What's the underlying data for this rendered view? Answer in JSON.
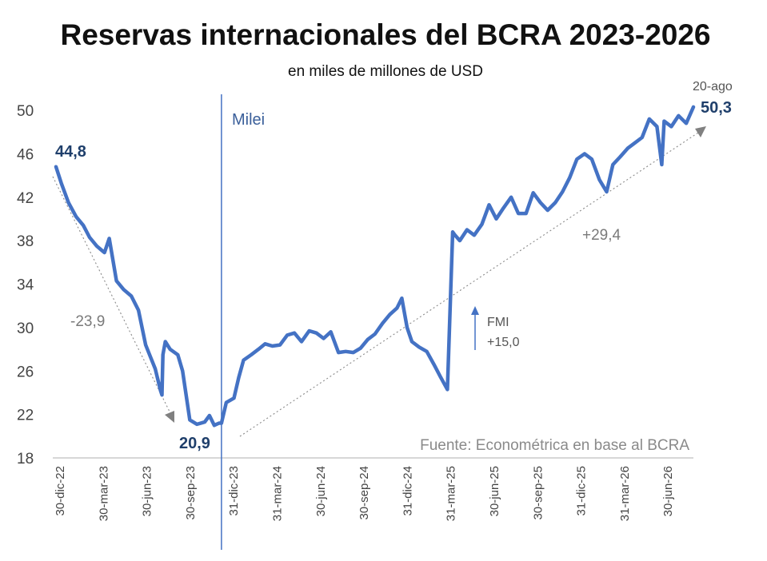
{
  "chart_data": {
    "type": "line",
    "title": "Reservas internacionales del BCRA 2023-2026",
    "subtitle": "en miles de millones de USD",
    "source": "Fuente: Econométrica en base al BCRA",
    "ylim": [
      18,
      52
    ],
    "yticks": [
      "50",
      "46",
      "42",
      "38",
      "34",
      "30",
      "26",
      "22",
      "18"
    ],
    "xtick_labels": [
      "30-dic-22",
      "30-mar-23",
      "30-jun-23",
      "30-sep-23",
      "31-dic-23",
      "31-mar-24",
      "30-jun-24",
      "30-sep-24",
      "31-dic-24",
      "31-mar-25",
      "30-jun-25",
      "30-sep-25",
      "31-dic-25",
      "31-mar-26",
      "30-jun-26"
    ],
    "grid": false,
    "series_color": "#4472c4",
    "x": [
      "2022-12-30",
      "2023-01-10",
      "2023-01-25",
      "2023-02-10",
      "2023-02-25",
      "2023-03-10",
      "2023-03-25",
      "2023-04-10",
      "2023-04-20",
      "2023-05-05",
      "2023-05-20",
      "2023-06-05",
      "2023-06-20",
      "2023-07-05",
      "2023-07-15",
      "2023-07-25",
      "2023-08-05",
      "2023-08-08",
      "2023-08-10",
      "2023-08-15",
      "2023-08-25",
      "2023-09-10",
      "2023-09-20",
      "2023-10-05",
      "2023-10-20",
      "2023-11-05",
      "2023-11-15",
      "2023-11-25",
      "2023-12-05",
      "2023-12-10",
      "2023-12-20",
      "2024-01-05",
      "2024-01-15",
      "2024-01-25",
      "2024-02-10",
      "2024-02-25",
      "2024-03-10",
      "2024-03-25",
      "2024-04-10",
      "2024-04-25",
      "2024-05-10",
      "2024-05-25",
      "2024-06-10",
      "2024-06-25",
      "2024-07-10",
      "2024-07-25",
      "2024-08-10",
      "2024-08-25",
      "2024-09-10",
      "2024-09-25",
      "2024-10-10",
      "2024-10-25",
      "2024-11-10",
      "2024-11-25",
      "2024-12-10",
      "2024-12-20",
      "2024-12-31",
      "2025-01-10",
      "2025-01-25",
      "2025-02-10",
      "2025-02-25",
      "2025-03-10",
      "2025-03-25",
      "2025-04-05",
      "2025-04-10",
      "2025-04-20",
      "2025-05-05",
      "2025-05-20",
      "2025-06-05",
      "2025-06-20",
      "2025-07-05",
      "2025-07-20",
      "2025-08-05",
      "2025-08-20",
      "2025-09-05",
      "2025-09-20",
      "2025-10-05",
      "2025-10-20",
      "2025-11-05",
      "2025-11-20",
      "2025-12-05",
      "2025-12-20",
      "2026-01-05",
      "2026-01-20",
      "2026-02-05",
      "2026-02-20",
      "2026-03-05",
      "2026-03-20",
      "2026-04-05",
      "2026-04-20",
      "2026-05-05",
      "2026-05-20",
      "2026-06-05",
      "2026-06-15",
      "2026-06-20",
      "2026-07-05",
      "2026-07-20",
      "2026-08-05",
      "2026-08-20"
    ],
    "values": [
      44.8,
      43.3,
      41.5,
      40.2,
      39.4,
      38.3,
      37.5,
      36.9,
      38.2,
      34.3,
      33.5,
      32.9,
      31.6,
      28.4,
      27.3,
      26.2,
      24.2,
      23.8,
      27.5,
      28.7,
      28.0,
      27.5,
      26.0,
      21.5,
      21.1,
      21.3,
      21.9,
      21.0,
      21.2,
      21.2,
      23.1,
      23.5,
      25.4,
      27.0,
      27.5,
      28.0,
      28.5,
      28.3,
      28.4,
      29.3,
      29.5,
      28.7,
      29.7,
      29.5,
      29.0,
      29.6,
      27.7,
      27.8,
      27.7,
      28.1,
      28.9,
      29.4,
      30.4,
      31.2,
      31.8,
      32.7,
      30.0,
      28.7,
      28.2,
      27.8,
      26.6,
      25.5,
      24.3,
      38.8,
      38.5,
      38.0,
      39.0,
      38.5,
      39.5,
      41.3,
      40.0,
      41.0,
      42.0,
      40.5,
      40.5,
      42.4,
      41.5,
      40.8,
      41.5,
      42.5,
      43.8,
      45.5,
      46.0,
      45.5,
      43.6,
      42.5,
      45.0,
      45.7,
      46.5,
      47.0,
      47.5,
      49.2,
      48.5,
      45.0,
      49.0,
      48.5,
      49.5,
      48.8,
      50.3
    ],
    "annotations": {
      "start_value": "44,8",
      "min_value": "20,9",
      "end_date": "20-ago",
      "end_value": "50,3",
      "event_label": "Milei",
      "event_date": "2023-12-10",
      "decline": "-23,9",
      "recovery": "+29,4",
      "fmi_label": "FMI",
      "fmi_amount": "+15,0"
    }
  }
}
